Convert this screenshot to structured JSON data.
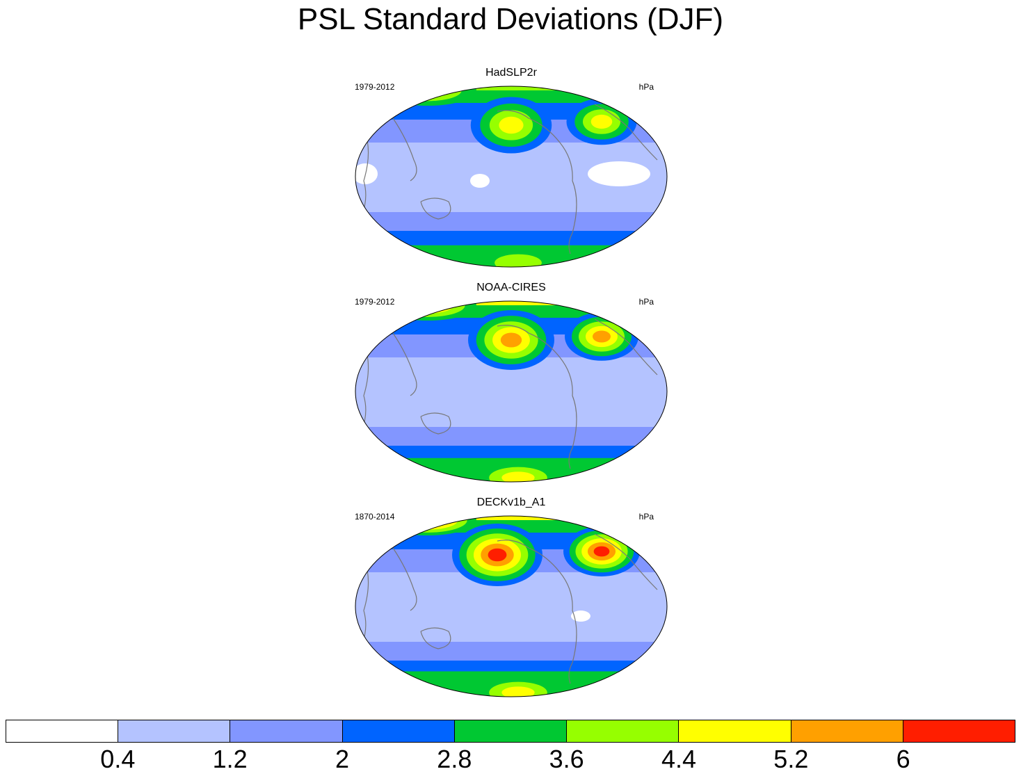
{
  "title": "PSL Standard Deviations (DJF)",
  "panels": [
    {
      "name": "HadSLP2r",
      "period": "1979-2012",
      "units": "hPa",
      "north_intensity": 0.55,
      "south_intensity": 0.35
    },
    {
      "name": "NOAA-CIRES",
      "period": "1979-2012",
      "units": "hPa",
      "north_intensity": 0.8,
      "south_intensity": 0.55
    },
    {
      "name": "DECKv1b_A1",
      "period": "1870-2014",
      "units": "hPa",
      "north_intensity": 1.0,
      "south_intensity": 0.7
    }
  ],
  "colorbar": {
    "colors": [
      "#ffffff",
      "#b4c3ff",
      "#8296ff",
      "#0064ff",
      "#00c832",
      "#96ff00",
      "#ffff00",
      "#ffa000",
      "#ff1e00"
    ],
    "labels": [
      "0.4",
      "1.2",
      "2",
      "2.8",
      "3.6",
      "4.4",
      "5.2",
      "6"
    ]
  }
}
